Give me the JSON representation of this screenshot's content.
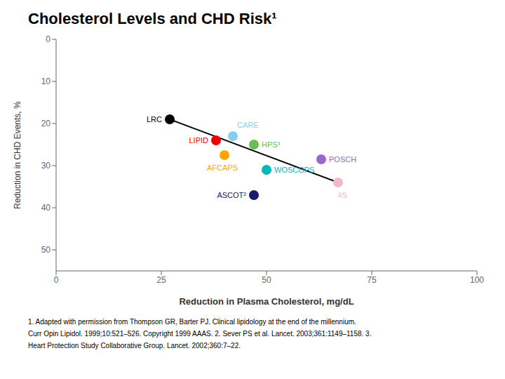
{
  "chart_data": {
    "type": "scatter",
    "title": "Cholesterol Levels and CHD Risk¹",
    "xlabel": "Reduction in Plasma Cholesterol, mg/dL",
    "ylabel": "Reduction in CHD Events, %",
    "xlim": [
      0,
      100
    ],
    "ylim": [
      55,
      0
    ],
    "xticks": [
      0,
      25,
      50,
      75,
      100
    ],
    "yticks": [
      0,
      10,
      20,
      30,
      40,
      50
    ],
    "points": [
      {
        "label": "LRC",
        "x": 27,
        "y": 19,
        "color": "#000000"
      },
      {
        "label": "LIPID",
        "x": 38,
        "y": 24,
        "color": "#ee0000"
      },
      {
        "label": "CARE",
        "x": 42,
        "y": 23,
        "color": "#87ceeb"
      },
      {
        "label": "HPS³",
        "x": 47,
        "y": 25,
        "color": "#6abf4b"
      },
      {
        "label": "AFCAPS",
        "x": 40,
        "y": 27.5,
        "color": "#ffa500"
      },
      {
        "label": "WOSCOPS",
        "x": 50,
        "y": 31,
        "color": "#00b8b8"
      },
      {
        "label": "POSCH",
        "x": 63,
        "y": 28.5,
        "color": "#9966cc"
      },
      {
        "label": "ASCOT²",
        "x": 47,
        "y": 37,
        "color": "#1a1a6e"
      },
      {
        "label": "4S",
        "x": 67,
        "y": 34,
        "color": "#f0b8c8"
      }
    ],
    "trend_line": {
      "x": [
        27,
        67
      ],
      "values": [
        19,
        34
      ],
      "color": "#000000"
    },
    "annotations": [
      "1. Adapted with permission from Thompson GR, Barter PJ. Clinical lipidology at the end of the millennium.",
      "Curr Opin Lipidol. 1999;10:521–526. Copyright 1999 AAAS. 2. Sever PS et al. Lancet. 2003;361:1149–1158. 3.",
      "Heart Protection Study Collaborative Group. Lancet. 2002;360:7–22."
    ]
  }
}
